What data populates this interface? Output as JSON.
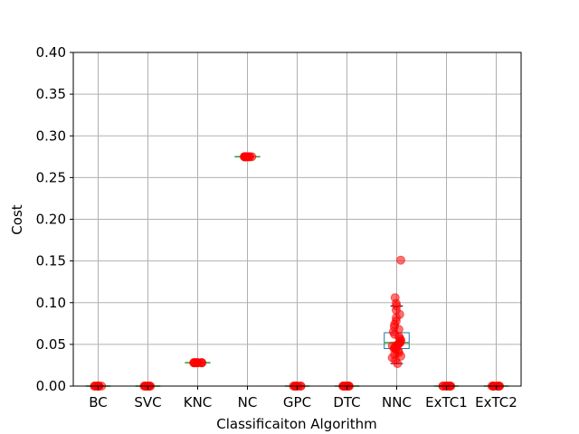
{
  "chart_data": {
    "type": "box",
    "title": "",
    "xlabel": "Classificaiton Algorithm",
    "ylabel": "Cost",
    "ylim": [
      0,
      0.4
    ],
    "yticks": [
      "0.00",
      "0.05",
      "0.10",
      "0.15",
      "0.20",
      "0.25",
      "0.30",
      "0.35",
      "0.40"
    ],
    "grid": true,
    "categories": [
      "BC",
      "SVC",
      "KNC",
      "NC",
      "GPC",
      "DTC",
      "NNC",
      "ExTC1",
      "ExTC2"
    ],
    "boxes": [
      {
        "category": "BC",
        "min": 0,
        "q1": 0,
        "median": 0,
        "q3": 0,
        "max": 0
      },
      {
        "category": "SVC",
        "min": 0,
        "q1": 0,
        "median": 0,
        "q3": 0,
        "max": 0
      },
      {
        "category": "KNC",
        "min": 0.028,
        "q1": 0.028,
        "median": 0.028,
        "q3": 0.028,
        "max": 0.028
      },
      {
        "category": "NC",
        "min": 0.275,
        "q1": 0.275,
        "median": 0.275,
        "q3": 0.275,
        "max": 0.275
      },
      {
        "category": "GPC",
        "min": 0,
        "q1": 0,
        "median": 0,
        "q3": 0,
        "max": 0
      },
      {
        "category": "DTC",
        "min": 0,
        "q1": 0,
        "median": 0,
        "q3": 0,
        "max": 0
      },
      {
        "category": "NNC",
        "min": 0.027,
        "q1": 0.045,
        "median": 0.052,
        "q3": 0.064,
        "max": 0.096
      },
      {
        "category": "ExTC1",
        "min": 0,
        "q1": 0,
        "median": 0,
        "q3": 0,
        "max": 0
      },
      {
        "category": "ExTC2",
        "min": 0,
        "q1": 0,
        "median": 0,
        "q3": 0,
        "max": 0
      }
    ],
    "points": {
      "BC": [
        0,
        0,
        0,
        0,
        0,
        0,
        0,
        0,
        0,
        0
      ],
      "SVC": [
        0,
        0,
        0,
        0,
        0,
        0,
        0,
        0,
        0,
        0
      ],
      "KNC": [
        0.028,
        0.028,
        0.028,
        0.028,
        0.028,
        0.028,
        0.028,
        0.028,
        0.028,
        0.028
      ],
      "NC": [
        0.275,
        0.275,
        0.275,
        0.275,
        0.275,
        0.275,
        0.275,
        0.275,
        0.275,
        0.275
      ],
      "GPC": [
        0,
        0,
        0,
        0,
        0,
        0,
        0,
        0,
        0,
        0
      ],
      "DTC": [
        0,
        0,
        0,
        0,
        0,
        0,
        0,
        0,
        0,
        0
      ],
      "NNC": [
        0.151,
        0.106,
        0.099,
        0.096,
        0.091,
        0.086,
        0.082,
        0.078,
        0.074,
        0.071,
        0.068,
        0.065,
        0.062,
        0.059,
        0.057,
        0.055,
        0.053,
        0.052,
        0.051,
        0.05,
        0.049,
        0.048,
        0.047,
        0.046,
        0.045,
        0.044,
        0.042,
        0.04,
        0.038,
        0.036,
        0.034,
        0.031,
        0.027
      ],
      "ExTC1": [
        0,
        0,
        0,
        0,
        0,
        0,
        0,
        0,
        0,
        0
      ],
      "ExTC2": [
        0,
        0,
        0,
        0,
        0,
        0,
        0,
        0,
        0,
        0
      ]
    },
    "colors": {
      "box": "#1f77b4",
      "median": "#2ca02c",
      "whisker": "#000000",
      "points": "#ff0000",
      "grid": "#b0b0b0",
      "axes": "#000000"
    }
  }
}
